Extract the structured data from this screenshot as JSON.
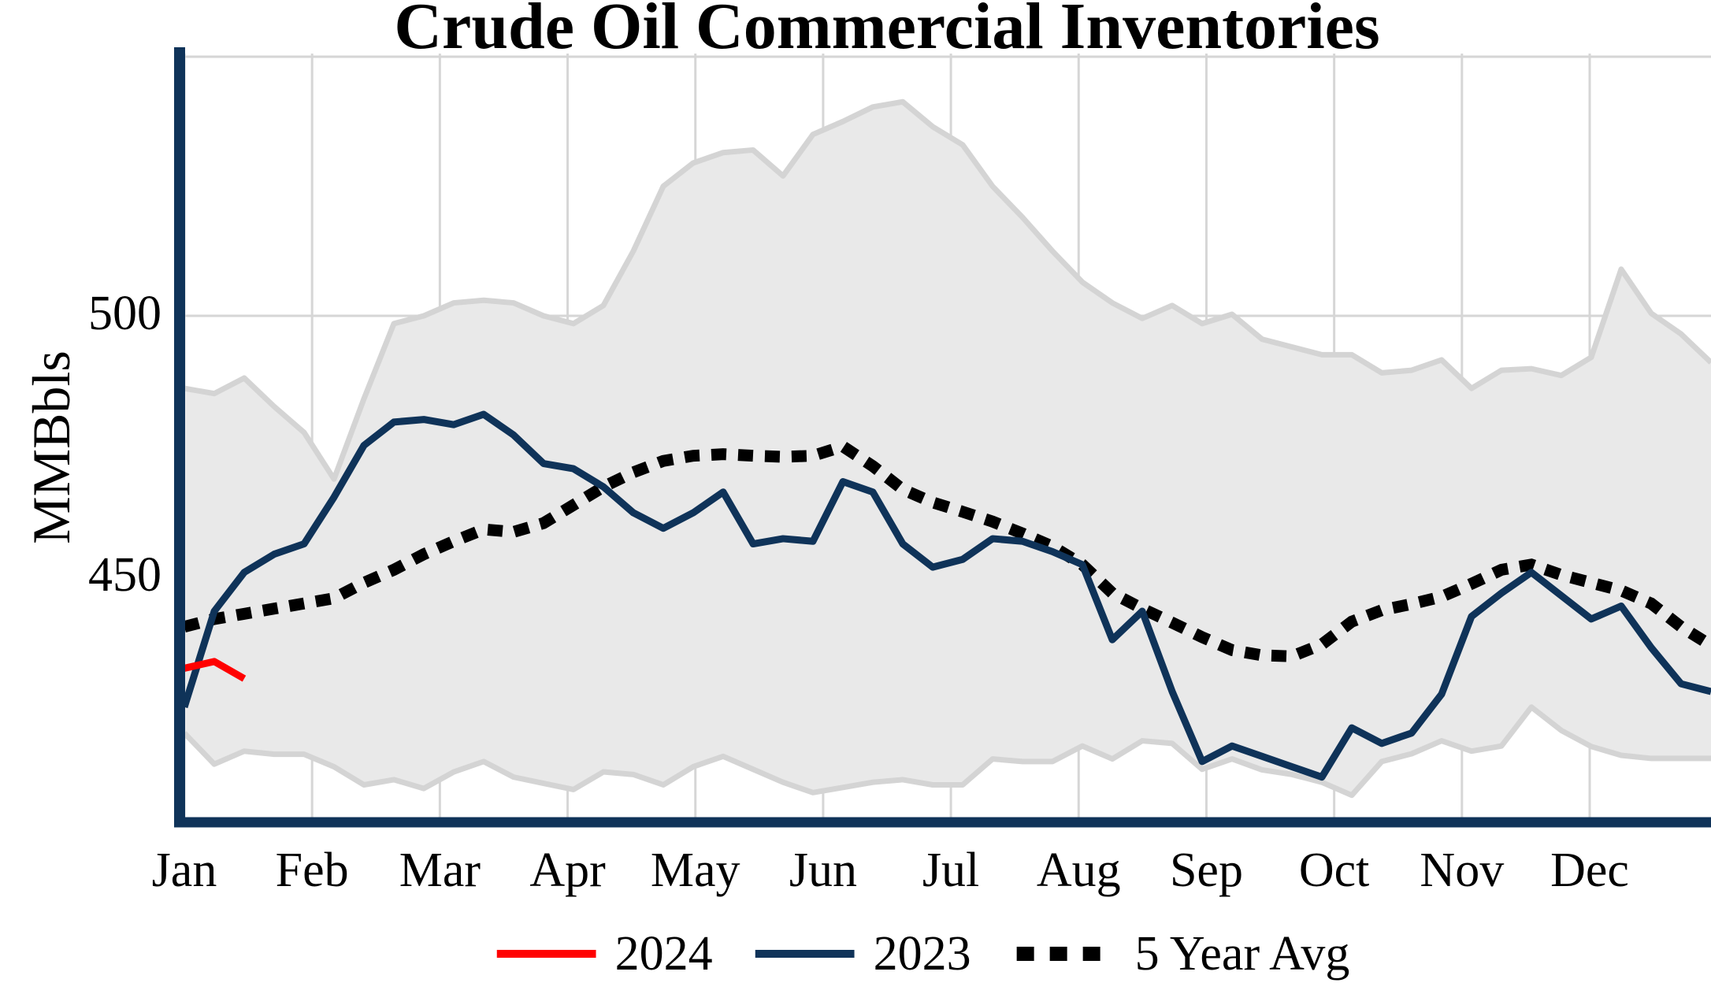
{
  "title": "Crude Oil Commercial Inventories",
  "colors": {
    "series_2024": "#ff0000",
    "series_2023": "#0f3359",
    "series_5yr": "#000000",
    "band_fill": "#e9e9e9",
    "band_edge": "#d4d4d4",
    "gridline": "#d6d6d6",
    "axis": "#0f3359",
    "background": "#ffffff"
  },
  "chart_data": {
    "type": "line",
    "title": "Crude Oil Commercial Inventories",
    "xlabel": "",
    "ylabel": "MMBbls",
    "x_tick_labels": [
      "Jan",
      "Feb",
      "Mar",
      "Apr",
      "May",
      "Jun",
      "Jul",
      "Aug",
      "Sep",
      "Oct",
      "Nov",
      "Dec"
    ],
    "y_ticks": [
      450,
      500
    ],
    "y_tick_labels": [
      "450",
      "500"
    ],
    "ylim": [
      403,
      549
    ],
    "grid": true,
    "legend_position": "bottom",
    "x_unit": "weekly (52 points across the year)",
    "series": [
      {
        "name": "2024",
        "color": "#ff0000",
        "style": "solid",
        "values": [
          432,
          433.3,
          430
        ]
      },
      {
        "name": "2023",
        "color": "#0f3359",
        "style": "solid",
        "values": [
          424.5,
          443,
          450.5,
          454,
          456,
          465,
          475,
          479.5,
          480,
          479,
          481,
          477,
          471.5,
          470.5,
          467,
          462,
          459,
          462,
          466,
          456,
          457,
          456.5,
          468,
          466,
          456,
          451.5,
          453,
          457,
          456.5,
          454.5,
          452,
          437.5,
          443,
          427.5,
          414,
          417,
          415,
          413,
          411,
          420.5,
          417.5,
          419.5,
          427,
          442,
          446.5,
          450.5,
          446,
          441.5,
          444,
          436,
          429,
          427.5
        ]
      },
      {
        "name": "5 Year Avg",
        "color": "#000000",
        "style": "dotted",
        "values": [
          440,
          441.5,
          442.5,
          443.5,
          444.5,
          445.5,
          448.5,
          451,
          454,
          456.5,
          458.8,
          458.3,
          460,
          463.5,
          467,
          469.8,
          472,
          473,
          473.3,
          473,
          472.8,
          473,
          474.8,
          471,
          466.5,
          464,
          462.2,
          460.3,
          458,
          455.5,
          452,
          446.5,
          443.5,
          440.8,
          438,
          435.5,
          434.5,
          434.3,
          436.6,
          441,
          443.2,
          444.4,
          445.8,
          448.3,
          451,
          452,
          450,
          448.5,
          447,
          444.5,
          440,
          436.4
        ]
      }
    ],
    "band": {
      "name": "5 year min-max range",
      "fill": "#e9e9e9",
      "edge": "#d4d4d4",
      "upper": [
        486,
        485,
        488,
        482.5,
        477.5,
        468.5,
        484,
        498.5,
        500,
        502.5,
        503,
        502.5,
        500,
        498.5,
        502,
        512.5,
        525,
        529.5,
        531.5,
        532,
        527,
        535,
        537.5,
        540.3,
        541.3,
        536.5,
        533,
        525,
        519,
        512.5,
        506.5,
        502.5,
        499.5,
        502,
        498.5,
        500.3,
        495.5,
        494,
        492.5,
        492.5,
        489,
        489.5,
        491.5,
        486,
        489.5,
        489.8,
        488.5,
        492,
        509,
        500.5,
        496.5,
        491
      ],
      "lower": [
        419.5,
        413.5,
        416,
        415.4,
        415.4,
        413,
        409.5,
        410.5,
        408.8,
        412,
        414,
        411,
        409.8,
        408.6,
        412,
        411.5,
        409.5,
        413,
        415,
        412.5,
        410,
        408,
        409,
        410,
        410.5,
        409.5,
        409.5,
        414.5,
        414,
        414,
        417,
        414.5,
        418,
        417.5,
        412.5,
        414.5,
        412.4,
        411.5,
        410,
        407.5,
        414,
        415.5,
        418,
        416,
        417,
        424.5,
        420,
        416.9,
        415.2,
        414.6,
        414.6,
        414.6
      ]
    }
  },
  "legend": {
    "items": [
      "2024",
      "2023",
      "5 Year Avg"
    ]
  }
}
